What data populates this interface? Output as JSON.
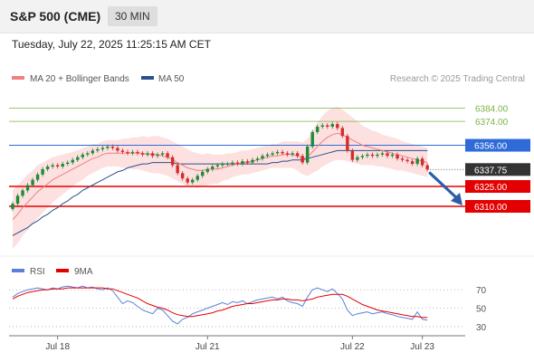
{
  "header": {
    "instrument": "S&P 500 (CME)",
    "timeframe": "30 MIN",
    "datetime": "Tuesday, July 22, 2025 11:25:15 AM CET"
  },
  "colors": {
    "resistance": "#7cb342",
    "pivot": "#2e6bd8",
    "support": "#e30000",
    "price_tag": "#333333",
    "ma20": "#f08080",
    "ma50": "#2b4f8f",
    "bollinger_fill": "#fde0e0",
    "candle_up": "#1f8a3a",
    "candle_down": "#d42b2b",
    "rsi": "#5b7fd8",
    "rsi_ma": "#e30000",
    "arrow": "#2a5fa8"
  },
  "chart_data": [
    {
      "type": "candlestick",
      "legend": [
        {
          "label": "MA 20 + Bollinger Bands",
          "color": "#f08080"
        },
        {
          "label": "MA 50",
          "color": "#2b4f8f"
        }
      ],
      "watermark": "Research © 2025 Trading Central",
      "ylim": [
        6280,
        6400
      ],
      "levels": [
        {
          "value": 6384.0,
          "label": "6384.00",
          "kind": "resistance"
        },
        {
          "value": 6374.0,
          "label": "6374.00",
          "kind": "resistance"
        },
        {
          "value": 6356.0,
          "label": "6356.00",
          "kind": "pivot"
        },
        {
          "value": 6337.75,
          "label": "6337.75",
          "kind": "last"
        },
        {
          "value": 6325.0,
          "label": "6325.00",
          "kind": "support"
        },
        {
          "value": 6310.0,
          "label": "6310.00",
          "kind": "support"
        }
      ],
      "x_ticks": [
        {
          "label": "Jul 18",
          "index": 9
        },
        {
          "label": "Jul 21",
          "index": 39
        },
        {
          "label": "Jul 22",
          "index": 68
        },
        {
          "label": "Jul 23",
          "index": 82
        }
      ],
      "close": [
        6312,
        6318,
        6322,
        6326,
        6330,
        6334,
        6338,
        6340,
        6341,
        6340,
        6342,
        6343,
        6345,
        6347,
        6349,
        6350,
        6352,
        6353,
        6354,
        6355,
        6354,
        6352,
        6351,
        6350,
        6351,
        6350,
        6349,
        6350,
        6348,
        6349,
        6350,
        6347,
        6341,
        6335,
        6331,
        6328,
        6330,
        6333,
        6336,
        6338,
        6340,
        6341,
        6342,
        6342,
        6343,
        6342,
        6344,
        6343,
        6345,
        6346,
        6348,
        6349,
        6350,
        6351,
        6350,
        6349,
        6350,
        6348,
        6343,
        6355,
        6366,
        6370,
        6371,
        6370,
        6372,
        6369,
        6363,
        6352,
        6345,
        6347,
        6348,
        6349,
        6348,
        6349,
        6350,
        6348,
        6349,
        6346,
        6345,
        6344,
        6342,
        6346,
        6341,
        6337.75
      ],
      "ma20": [
        6300,
        6304,
        6309,
        6313,
        6317,
        6321,
        6324,
        6327,
        6330,
        6332,
        6334,
        6336,
        6338,
        6340,
        6342,
        6344,
        6346,
        6347,
        6349,
        6350,
        6350,
        6350,
        6350,
        6350,
        6350,
        6350,
        6350,
        6349,
        6349,
        6349,
        6348,
        6347,
        6345,
        6343,
        6341,
        6339,
        6338,
        6337,
        6337,
        6338,
        6338,
        6338,
        6339,
        6340,
        6341,
        6342,
        6343,
        6343,
        6344,
        6345,
        6346,
        6347,
        6348,
        6348,
        6349,
        6349,
        6349,
        6348,
        6346,
        6347,
        6351,
        6355,
        6359,
        6362,
        6364,
        6365,
        6364,
        6362,
        6360,
        6358,
        6356,
        6355,
        6354,
        6353,
        6352,
        6351,
        6350,
        6349,
        6348,
        6347,
        6346,
        6345,
        6344,
        6343
      ],
      "ma50": [
        6288,
        6290,
        6292,
        6294,
        6297,
        6299,
        6302,
        6304,
        6307,
        6309,
        6312,
        6314,
        6317,
        6319,
        6322,
        6324,
        6326,
        6328,
        6330,
        6332,
        6334,
        6336,
        6337,
        6339,
        6340,
        6341,
        6342,
        6342,
        6343,
        6343,
        6343,
        6343,
        6343,
        6342,
        6342,
        6342,
        6342,
        6342,
        6342,
        6342,
        6342,
        6342,
        6342,
        6342,
        6342,
        6342,
        6342,
        6342,
        6342,
        6342,
        6342,
        6342,
        6343,
        6343,
        6344,
        6344,
        6345,
        6345,
        6345,
        6346,
        6347,
        6348,
        6349,
        6350,
        6351,
        6352,
        6352,
        6352,
        6352,
        6352,
        6352,
        6352,
        6352,
        6352,
        6352,
        6352,
        6352,
        6352,
        6352,
        6352,
        6352,
        6352,
        6352,
        6352
      ],
      "bb_width": [
        22,
        22,
        21,
        21,
        20,
        20,
        19,
        18,
        17,
        16,
        15,
        14,
        13,
        12,
        12,
        11,
        11,
        10,
        10,
        10,
        10,
        10,
        11,
        11,
        12,
        12,
        13,
        13,
        14,
        14,
        14,
        14,
        14,
        14,
        14,
        14,
        13,
        13,
        12,
        12,
        11,
        11,
        10,
        10,
        9,
        9,
        9,
        9,
        9,
        9,
        9,
        9,
        9,
        9,
        10,
        10,
        10,
        11,
        12,
        14,
        16,
        18,
        19,
        20,
        20,
        20,
        19,
        18,
        17,
        16,
        15,
        14,
        13,
        13,
        12,
        12,
        12,
        12,
        11,
        11,
        11,
        11,
        11,
        11
      ]
    },
    {
      "type": "line",
      "legend": [
        {
          "label": "RSI",
          "color": "#5b7fd8"
        },
        {
          "label": "9MA",
          "color": "#e30000"
        }
      ],
      "ylim": [
        25,
        80
      ],
      "y_ticks": [
        {
          "value": 70,
          "label": "70"
        },
        {
          "value": 50,
          "label": "50"
        },
        {
          "value": 30,
          "label": "30"
        }
      ],
      "rsi": [
        62,
        66,
        68,
        70,
        71,
        72,
        71,
        70,
        72,
        71,
        73,
        74,
        73,
        72,
        74,
        72,
        73,
        71,
        70,
        72,
        69,
        62,
        55,
        58,
        56,
        52,
        48,
        46,
        44,
        50,
        48,
        42,
        36,
        33,
        38,
        40,
        44,
        46,
        48,
        50,
        52,
        54,
        56,
        54,
        57,
        56,
        58,
        55,
        57,
        59,
        60,
        61,
        62,
        60,
        62,
        58,
        56,
        55,
        52,
        62,
        70,
        72,
        70,
        68,
        71,
        66,
        60,
        48,
        42,
        44,
        45,
        46,
        44,
        45,
        46,
        44,
        43,
        41,
        40,
        39,
        38,
        46,
        38,
        37
      ],
      "ma9": [
        60,
        63,
        65,
        67,
        68,
        69,
        70,
        70,
        71,
        71,
        71,
        72,
        72,
        72,
        72,
        72,
        72,
        72,
        72,
        71,
        71,
        69,
        67,
        65,
        63,
        61,
        58,
        55,
        53,
        51,
        50,
        48,
        45,
        43,
        42,
        41,
        41,
        42,
        43,
        44,
        45,
        47,
        48,
        50,
        52,
        53,
        54,
        55,
        55,
        56,
        57,
        58,
        59,
        59,
        60,
        60,
        59,
        59,
        58,
        59,
        60,
        62,
        63,
        64,
        65,
        65,
        65,
        63,
        60,
        57,
        54,
        52,
        50,
        48,
        47,
        46,
        45,
        44,
        43,
        42,
        41,
        41,
        40,
        40
      ]
    }
  ]
}
